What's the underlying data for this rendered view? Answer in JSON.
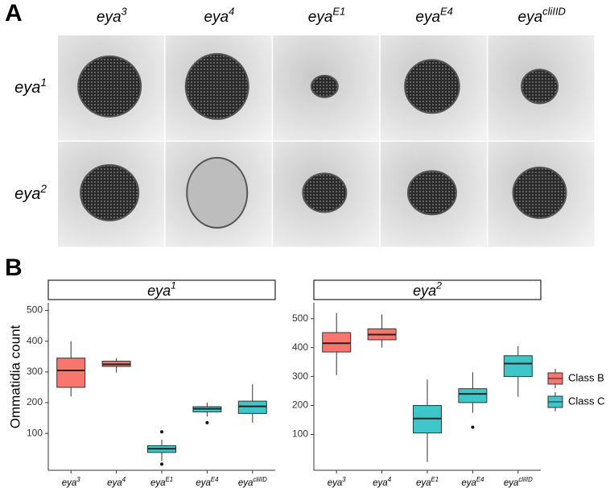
{
  "panel_a": {
    "label": "A",
    "columns": [
      [
        "eya",
        "3"
      ],
      [
        "eya",
        "4"
      ],
      [
        "eya",
        "E1"
      ],
      [
        "eya",
        "E4"
      ],
      [
        "eya",
        "cliIID"
      ]
    ],
    "rows": [
      [
        "eya",
        "1"
      ],
      [
        "eya",
        "2"
      ]
    ]
  },
  "panel_b": {
    "label": "B",
    "y_label": "Ommatidia count",
    "legend": [
      {
        "name": "Class B",
        "color": "#f8766d"
      },
      {
        "name": "Class C",
        "color": "#3fc6c8"
      }
    ]
  },
  "chart_data": [
    {
      "type": "box",
      "title": [
        "eya",
        "1"
      ],
      "categories": [
        [
          "eya",
          "3"
        ],
        [
          "eya",
          "4"
        ],
        [
          "eya",
          "E1"
        ],
        [
          "eya",
          "E4"
        ],
        [
          "eya",
          "cliIID"
        ]
      ],
      "ylim": [
        -20,
        525
      ],
      "yticks": [
        100,
        200,
        300,
        400,
        500
      ],
      "series": [
        {
          "name": "Class B",
          "color": "#f8766d",
          "values": [
            {
              "min": 220,
              "q1": 250,
              "median": 305,
              "q3": 345,
              "max": 400,
              "outliers": []
            },
            {
              "min": 298,
              "q1": 318,
              "median": 325,
              "q3": 335,
              "max": 345,
              "outliers": []
            },
            null,
            null,
            null
          ]
        },
        {
          "name": "Class C",
          "color": "#3fc6c8",
          "values": [
            null,
            null,
            {
              "min": 10,
              "q1": 38,
              "median": 50,
              "q3": 60,
              "max": 80,
              "outliers": [
                0,
                105
              ]
            },
            {
              "min": 155,
              "q1": 170,
              "median": 180,
              "q3": 187,
              "max": 200,
              "outliers": [
                135
              ]
            },
            {
              "min": 135,
              "q1": 165,
              "median": 188,
              "q3": 205,
              "max": 260,
              "outliers": []
            }
          ]
        }
      ]
    },
    {
      "type": "box",
      "title": [
        "eya",
        "2"
      ],
      "categories": [
        [
          "eya",
          "3"
        ],
        [
          "eya",
          "4"
        ],
        [
          "eya",
          "E1"
        ],
        [
          "eya",
          "E4"
        ],
        [
          "eya",
          "cliIID"
        ]
      ],
      "ylim": [
        -24,
        555
      ],
      "yticks": [
        100,
        200,
        300,
        400,
        500
      ],
      "series": [
        {
          "name": "Class B",
          "color": "#f8766d",
          "values": [
            {
              "min": 305,
              "q1": 385,
              "median": 415,
              "q3": 452,
              "max": 520,
              "outliers": []
            },
            {
              "min": 400,
              "q1": 427,
              "median": 445,
              "q3": 465,
              "max": 515,
              "outliers": []
            },
            null,
            null,
            null
          ]
        },
        {
          "name": "Class C",
          "color": "#3fc6c8",
          "values": [
            null,
            null,
            {
              "min": 5,
              "q1": 105,
              "median": 155,
              "q3": 200,
              "max": 290,
              "outliers": []
            },
            {
              "min": 175,
              "q1": 210,
              "median": 240,
              "q3": 258,
              "max": 315,
              "outliers": [
                125
              ]
            },
            {
              "min": 230,
              "q1": 300,
              "median": 345,
              "q3": 372,
              "max": 405,
              "outliers": []
            }
          ]
        }
      ]
    }
  ]
}
